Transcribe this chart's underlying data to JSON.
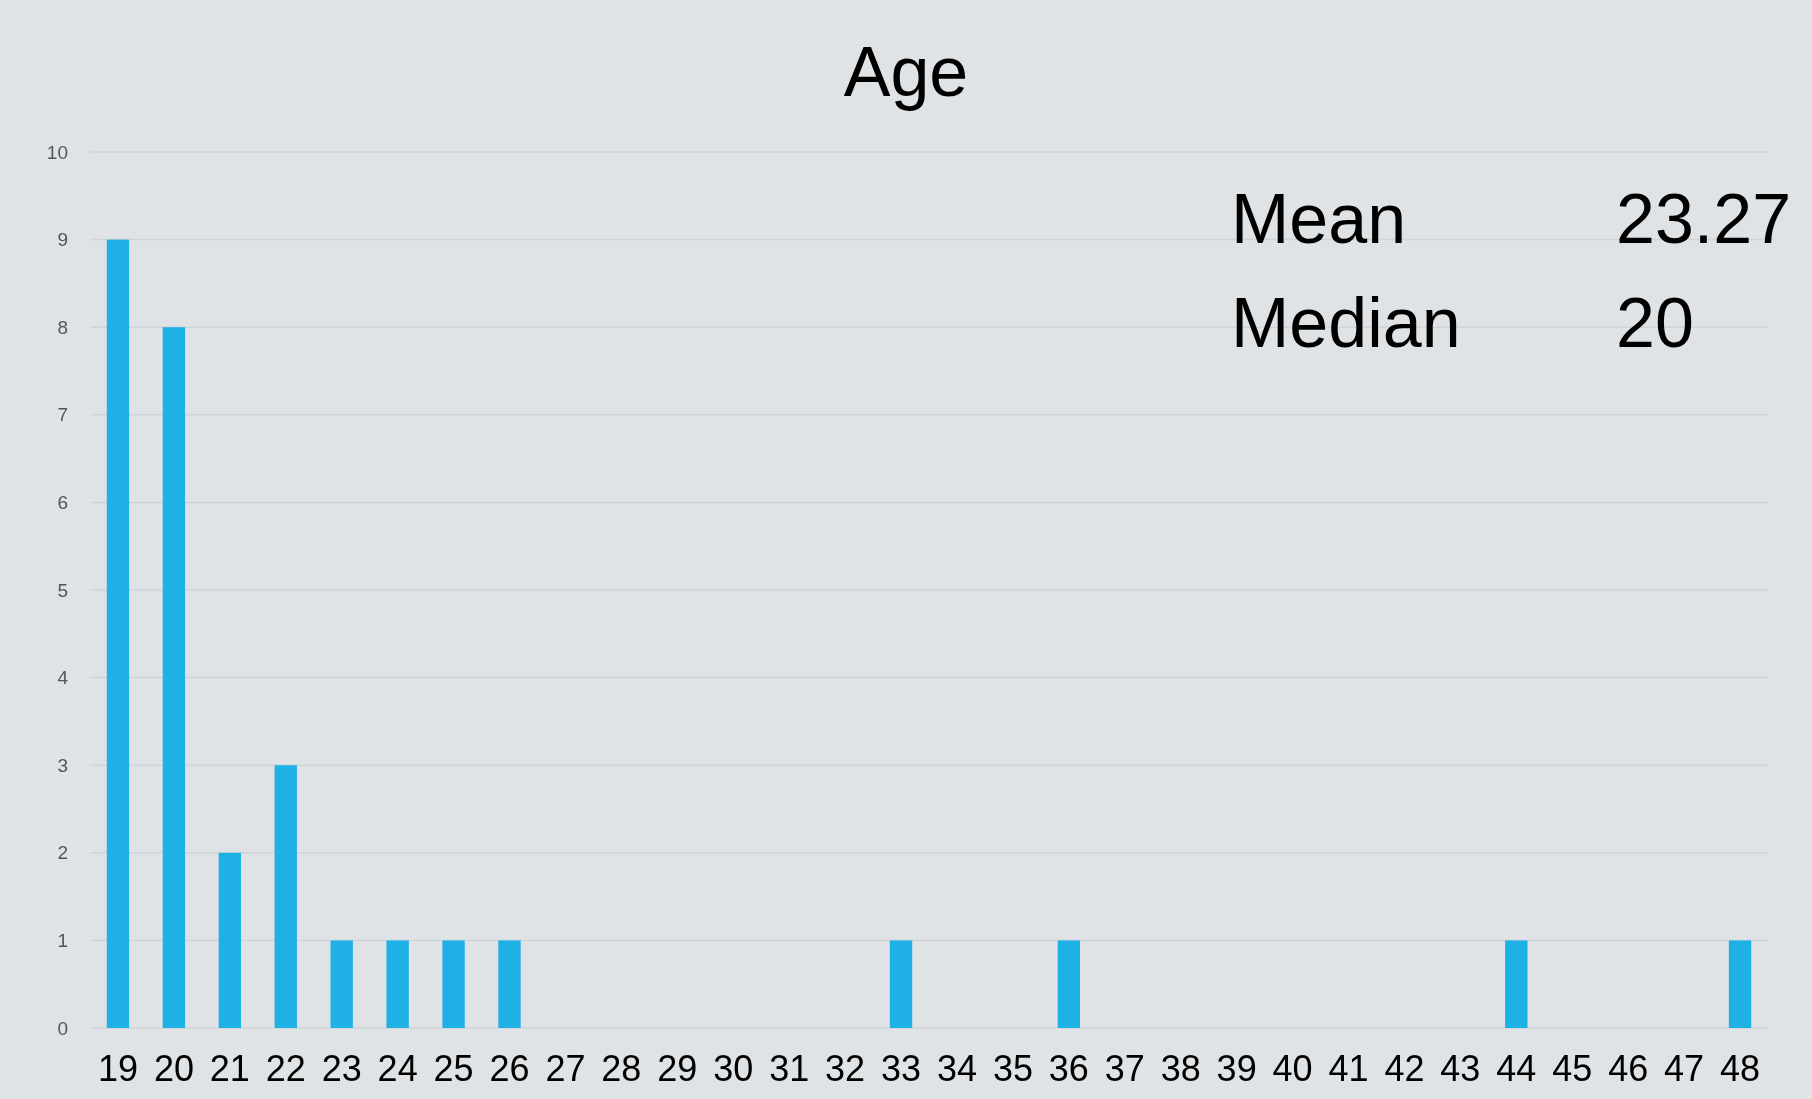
{
  "chart_data": {
    "type": "bar",
    "title": "Age",
    "categories": [
      "19",
      "20",
      "21",
      "22",
      "23",
      "24",
      "25",
      "26",
      "27",
      "28",
      "29",
      "30",
      "31",
      "32",
      "33",
      "34",
      "35",
      "36",
      "37",
      "38",
      "39",
      "40",
      "41",
      "42",
      "43",
      "44",
      "45",
      "46",
      "47",
      "48"
    ],
    "values": [
      9,
      8,
      2,
      3,
      1,
      1,
      1,
      1,
      0,
      0,
      0,
      0,
      0,
      0,
      1,
      0,
      0,
      1,
      0,
      0,
      0,
      0,
      0,
      0,
      0,
      1,
      0,
      0,
      0,
      1
    ],
    "color": "#1fb0e6",
    "ylim": [
      0,
      10
    ],
    "yticks": [
      0,
      1,
      2,
      3,
      4,
      5,
      6,
      7,
      8,
      9,
      10
    ],
    "grid": "y",
    "annotations": [
      "Mean",
      "23.27",
      "Median",
      "20"
    ]
  }
}
